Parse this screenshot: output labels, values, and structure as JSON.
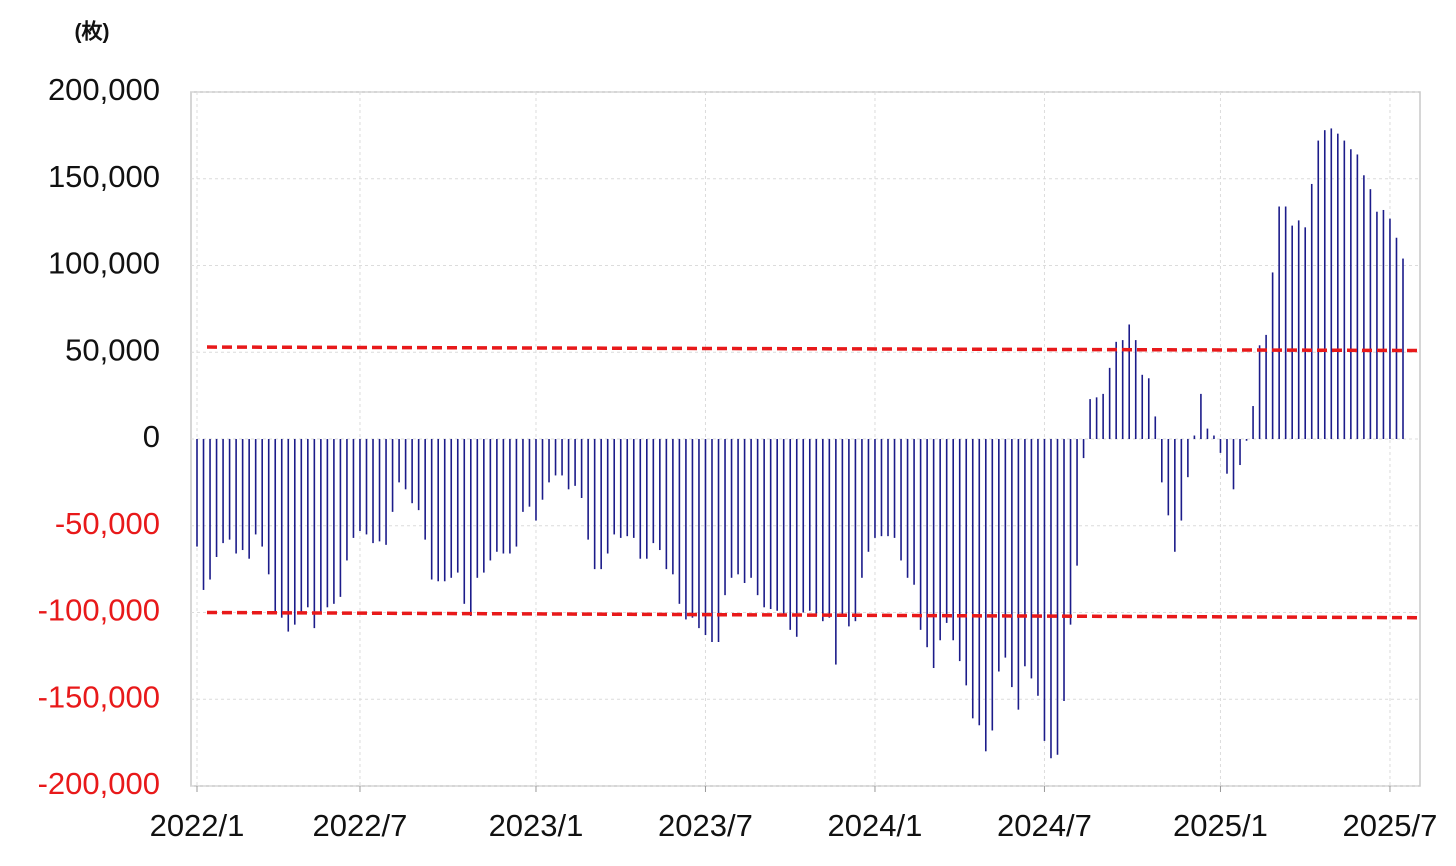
{
  "chart_data": {
    "type": "bar",
    "y_unit_label": "(枚)",
    "categories": [
      "2022/1",
      null,
      null,
      null,
      null,
      null,
      null,
      null,
      null,
      null,
      null,
      null,
      null,
      null,
      null,
      null,
      null,
      null,
      null,
      null,
      null,
      null,
      null,
      null,
      null,
      "2022/7",
      null,
      null,
      null,
      null,
      null,
      null,
      null,
      null,
      null,
      null,
      null,
      null,
      null,
      null,
      null,
      null,
      null,
      null,
      null,
      null,
      null,
      null,
      null,
      null,
      null,
      null,
      "2023/1",
      null,
      null,
      null,
      null,
      null,
      null,
      null,
      null,
      null,
      null,
      null,
      null,
      null,
      null,
      null,
      null,
      null,
      null,
      null,
      null,
      null,
      null,
      null,
      null,
      null,
      "2023/7",
      null,
      null,
      null,
      null,
      null,
      null,
      null,
      null,
      null,
      null,
      null,
      null,
      null,
      null,
      null,
      null,
      null,
      null,
      null,
      null,
      null,
      null,
      null,
      null,
      null,
      "2024/1",
      null,
      null,
      null,
      null,
      null,
      null,
      null,
      null,
      null,
      null,
      null,
      null,
      null,
      null,
      null,
      null,
      null,
      null,
      null,
      null,
      null,
      null,
      null,
      null,
      null,
      "2024/7",
      null,
      null,
      null,
      null,
      null,
      null,
      null,
      null,
      null,
      null,
      null,
      null,
      null,
      null,
      null,
      null,
      null,
      null,
      null,
      null,
      null,
      null,
      null,
      null,
      null,
      null,
      "2025/1",
      null,
      null,
      null,
      null,
      null,
      null,
      null,
      null,
      null,
      null,
      null,
      null,
      null,
      null,
      null,
      null,
      null,
      null,
      null,
      null,
      null,
      null,
      null,
      null,
      null,
      "2025/7",
      null,
      null
    ],
    "values": [
      -62000,
      -87000,
      -81000,
      -68000,
      -60000,
      -58000,
      -66000,
      -64000,
      -69000,
      -55000,
      -62000,
      -78000,
      -100000,
      -103000,
      -111000,
      -107000,
      -100000,
      -97000,
      -109000,
      -100000,
      -97000,
      -95000,
      -91000,
      -70000,
      -57000,
      -53000,
      -55000,
      -60000,
      -59000,
      -61000,
      -42000,
      -25000,
      -29000,
      -37000,
      -41000,
      -58000,
      -81000,
      -82000,
      -82000,
      -80000,
      -77000,
      -95000,
      -102000,
      -80000,
      -77000,
      -70000,
      -65000,
      -66000,
      -66000,
      -62000,
      -42000,
      -39000,
      -47000,
      -35000,
      -25000,
      -21000,
      -21000,
      -29000,
      -27000,
      -34000,
      -58000,
      -75000,
      -75000,
      -66000,
      -55000,
      -57000,
      -56000,
      -57000,
      -69000,
      -69000,
      -60000,
      -64000,
      -75000,
      -78000,
      -95000,
      -104000,
      -103000,
      -109000,
      -113000,
      -117000,
      -117000,
      -90000,
      -80000,
      -78000,
      -83000,
      -80000,
      -90000,
      -97000,
      -98000,
      -99000,
      -102000,
      -110000,
      -114000,
      -100000,
      -99000,
      -102000,
      -105000,
      -103000,
      -130000,
      -102000,
      -108000,
      -105000,
      -80000,
      -65000,
      -57000,
      -56000,
      -56000,
      -57000,
      -70000,
      -80000,
      -84000,
      -110000,
      -120000,
      -132000,
      -116000,
      -106000,
      -116000,
      -128000,
      -142000,
      -161000,
      -165000,
      -180000,
      -168000,
      -134000,
      -126000,
      -143000,
      -156000,
      -131000,
      -138000,
      -148000,
      -174000,
      -184000,
      -182000,
      -151000,
      -107000,
      -73000,
      -11000,
      23000,
      24000,
      26000,
      41000,
      56000,
      57000,
      66000,
      57000,
      37000,
      35000,
      13000,
      -25000,
      -44000,
      -65000,
      -47000,
      -22000,
      2000,
      26000,
      6000,
      2000,
      -8000,
      -20000,
      -29000,
      -15000,
      -1000,
      19000,
      54000,
      60000,
      96000,
      134000,
      134000,
      123000,
      126000,
      122000,
      147000,
      172000,
      178000,
      179000,
      176000,
      172000,
      167000,
      164000,
      152000,
      144000,
      131000,
      132000,
      127000,
      116000,
      104000
    ],
    "color": "#1c1c8a",
    "ylim": [
      -200000,
      200000
    ],
    "yticks": [
      {
        "value": -200000,
        "label": "-200,000"
      },
      {
        "value": -150000,
        "label": "-150,000"
      },
      {
        "value": -100000,
        "label": "-100,000"
      },
      {
        "value": -50000,
        "label": "-50,000"
      },
      0,
      {
        "value": 50000,
        "label": "50,000"
      },
      {
        "value": 100000,
        "label": "100,000"
      },
      {
        "value": 150000,
        "label": "150,000"
      },
      {
        "value": 200000,
        "label": "200,000"
      }
    ],
    "negative_label_color": "#e8191a",
    "grid": true,
    "reference_lines": [
      {
        "color": "#e8191a",
        "values": [
          53000,
          51000
        ]
      },
      {
        "color": "#e8191a",
        "values": [
          -100000,
          -103000
        ]
      }
    ]
  }
}
